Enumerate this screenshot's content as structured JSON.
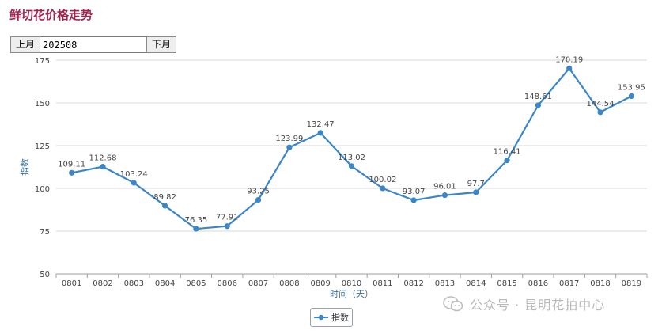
{
  "page": {
    "title": "鲜切花价格走势",
    "prev_month_label": "上月",
    "next_month_label": "下月",
    "month_value": "202508",
    "watermark": "公众号 · 昆明花拍中心"
  },
  "colors": {
    "series": "#3a86c8",
    "title": "#a0244d",
    "axis_title": "#3d6f9a"
  },
  "chart_data": {
    "type": "line",
    "title": "鲜切花价格走势",
    "xlabel": "时间（天）",
    "ylabel": "指数",
    "ylim": [
      50,
      175
    ],
    "yticks": [
      50,
      75,
      100,
      125,
      150,
      175
    ],
    "grid": true,
    "legend_position": "bottom-center",
    "categories": [
      "0801",
      "0802",
      "0803",
      "0804",
      "0805",
      "0806",
      "0807",
      "0808",
      "0809",
      "0810",
      "0811",
      "0812",
      "0813",
      "0814",
      "0815",
      "0816",
      "0817",
      "0818",
      "0819"
    ],
    "series": [
      {
        "name": "指数",
        "values": [
          109.11,
          112.68,
          103.24,
          89.82,
          76.35,
          77.91,
          93.25,
          123.99,
          132.47,
          113.02,
          100.02,
          93.07,
          96.01,
          97.7,
          116.41,
          148.61,
          170.19,
          144.54,
          153.95
        ]
      }
    ]
  }
}
